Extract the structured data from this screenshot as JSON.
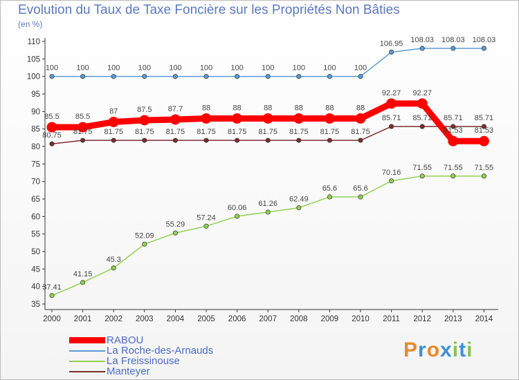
{
  "header": {
    "title": "Evolution du Taux de Taxe Foncière sur les Propriétés Non Bâties",
    "unit": "(en %)"
  },
  "logo": {
    "letters": [
      "P",
      "r",
      "o",
      "x",
      "i",
      "t",
      "i"
    ],
    "colors": [
      "#e8892b",
      "#3b8fd6",
      "#e8892b",
      "#3b8fd6",
      "#8bc34a",
      "#3b8fd6",
      "#8bc34a"
    ]
  },
  "chart_data": {
    "type": "line",
    "title": "Evolution du Taux de Taxe Foncière sur les Propriétés Non Bâties",
    "ylabel": "(en %)",
    "xlabel": "",
    "ylim": [
      35,
      110
    ],
    "yticks": [
      35,
      40,
      45,
      50,
      55,
      60,
      65,
      70,
      75,
      80,
      85,
      90,
      95,
      100,
      105,
      110
    ],
    "grid": false,
    "legend": "bottom-left",
    "x": [
      "2000",
      "2001",
      "2002",
      "2003",
      "2004",
      "2005",
      "2006",
      "2007",
      "2008",
      "2009",
      "2010",
      "2011",
      "2012",
      "2013",
      "2014"
    ],
    "series": [
      {
        "name": "RABOU",
        "color": "#ff0000",
        "emphasis": "thick",
        "values": [
          85.5,
          85.5,
          87,
          87.5,
          87.7,
          88,
          88,
          88,
          88,
          88,
          88,
          92.27,
          92.27,
          81.53,
          81.53
        ],
        "labels": [
          "85.5",
          "85.5",
          "87",
          "87.5",
          "87.7",
          "88",
          "88",
          "88",
          "88",
          "88",
          "88",
          "92.27",
          "92.27",
          "81.53",
          "81.53"
        ]
      },
      {
        "name": "La Roche-des-Arnauds",
        "color": "#5b9bd5",
        "values": [
          100,
          100,
          100,
          100,
          100,
          100,
          100,
          100,
          100,
          100,
          100,
          106.95,
          108.03,
          108.03,
          108.03
        ],
        "labels": [
          "100",
          "100",
          "100",
          "100",
          "100",
          "100",
          "100",
          "100",
          "100",
          "100",
          "100",
          "106.95",
          "108.03",
          "108.03",
          "108.03"
        ]
      },
      {
        "name": "La Freissinouse",
        "color": "#92d050",
        "values": [
          37.41,
          41.15,
          45.3,
          52.09,
          55.29,
          57.24,
          60.06,
          61.26,
          62.49,
          65.6,
          65.6,
          70.16,
          71.55,
          71.55,
          71.55
        ],
        "labels": [
          "37.41",
          "41.15",
          "45.3",
          "52.09",
          "55.29",
          "57.24",
          "60.06",
          "61.26",
          "62.49",
          "65.6",
          "65.6",
          "70.16",
          "71.55",
          "71.55",
          "71.55"
        ]
      },
      {
        "name": "Manteyer",
        "color": "#7b2c2c",
        "values": [
          80.75,
          81.75,
          81.75,
          81.75,
          81.75,
          81.75,
          81.75,
          81.75,
          81.75,
          81.75,
          81.75,
          85.71,
          85.71,
          85.71,
          85.71
        ],
        "labels": [
          "80.75",
          "81.75",
          "81.75",
          "81.75",
          "81.75",
          "81.75",
          "81.75",
          "81.75",
          "81.75",
          "81.75",
          "81.75",
          "85.71",
          "85.71",
          "85.71",
          "85.71"
        ]
      }
    ]
  }
}
